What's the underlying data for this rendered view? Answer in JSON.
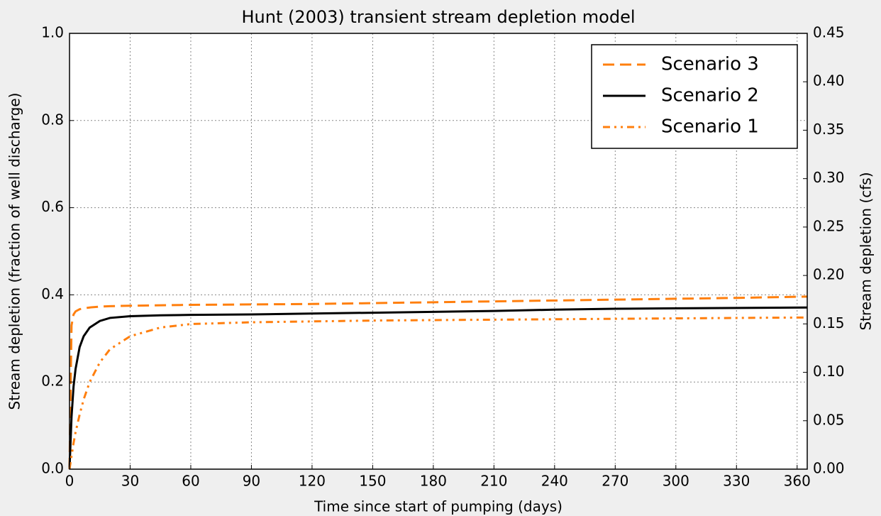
{
  "chart_data": {
    "type": "line",
    "title": "Hunt (2003) transient stream depletion model",
    "xlabel": "Time since start of pumping (days)",
    "ylabel": "Stream depletion (fraction of well discharge)",
    "y2label": "Stream depletion (cfs)",
    "x": [
      0,
      1,
      2,
      3,
      5,
      7,
      10,
      15,
      20,
      30,
      45,
      60,
      90,
      120,
      150,
      180,
      210,
      240,
      270,
      300,
      330,
      365
    ],
    "series": [
      {
        "name": "Scenario 3",
        "color": "#ff7f0e",
        "linestyle": "dashed",
        "values": [
          0.0,
          0.33,
          0.355,
          0.362,
          0.367,
          0.369,
          0.371,
          0.373,
          0.374,
          0.375,
          0.376,
          0.377,
          0.378,
          0.379,
          0.381,
          0.383,
          0.385,
          0.387,
          0.389,
          0.391,
          0.393,
          0.396
        ]
      },
      {
        "name": "Scenario 2",
        "color": "#000000",
        "linestyle": "solid",
        "values": [
          0.0,
          0.12,
          0.19,
          0.23,
          0.28,
          0.305,
          0.325,
          0.34,
          0.347,
          0.351,
          0.353,
          0.354,
          0.355,
          0.357,
          0.359,
          0.361,
          0.363,
          0.366,
          0.368,
          0.369,
          0.37,
          0.371
        ]
      },
      {
        "name": "Scenario 1",
        "color": "#ff7f0e",
        "linestyle": "dashdot",
        "values": [
          0.0,
          0.03,
          0.06,
          0.085,
          0.125,
          0.16,
          0.2,
          0.245,
          0.275,
          0.305,
          0.325,
          0.333,
          0.337,
          0.339,
          0.341,
          0.342,
          0.343,
          0.344,
          0.345,
          0.346,
          0.347,
          0.348
        ]
      }
    ],
    "xlim": [
      0,
      365
    ],
    "xticks": [
      0,
      30,
      60,
      90,
      120,
      150,
      180,
      210,
      240,
      270,
      300,
      330,
      360
    ],
    "ylim": [
      0,
      1
    ],
    "yticks": [
      {
        "value": 0,
        "label": "0.0"
      },
      0.2,
      0.4,
      0.6,
      0.8,
      {
        "value": 1,
        "label": "1.0"
      }
    ],
    "y2lim": [
      0,
      0.45
    ],
    "y2ticks": [
      {
        "value": 0,
        "label": "0.00"
      },
      0.05,
      {
        "value": 0.1,
        "label": "0.10"
      },
      0.15,
      {
        "value": 0.2,
        "label": "0.20"
      },
      0.25,
      {
        "value": 0.3,
        "label": "0.30"
      },
      0.35,
      {
        "value": 0.4,
        "label": "0.40"
      },
      0.45
    ],
    "grid": true,
    "legend": "upper right"
  }
}
